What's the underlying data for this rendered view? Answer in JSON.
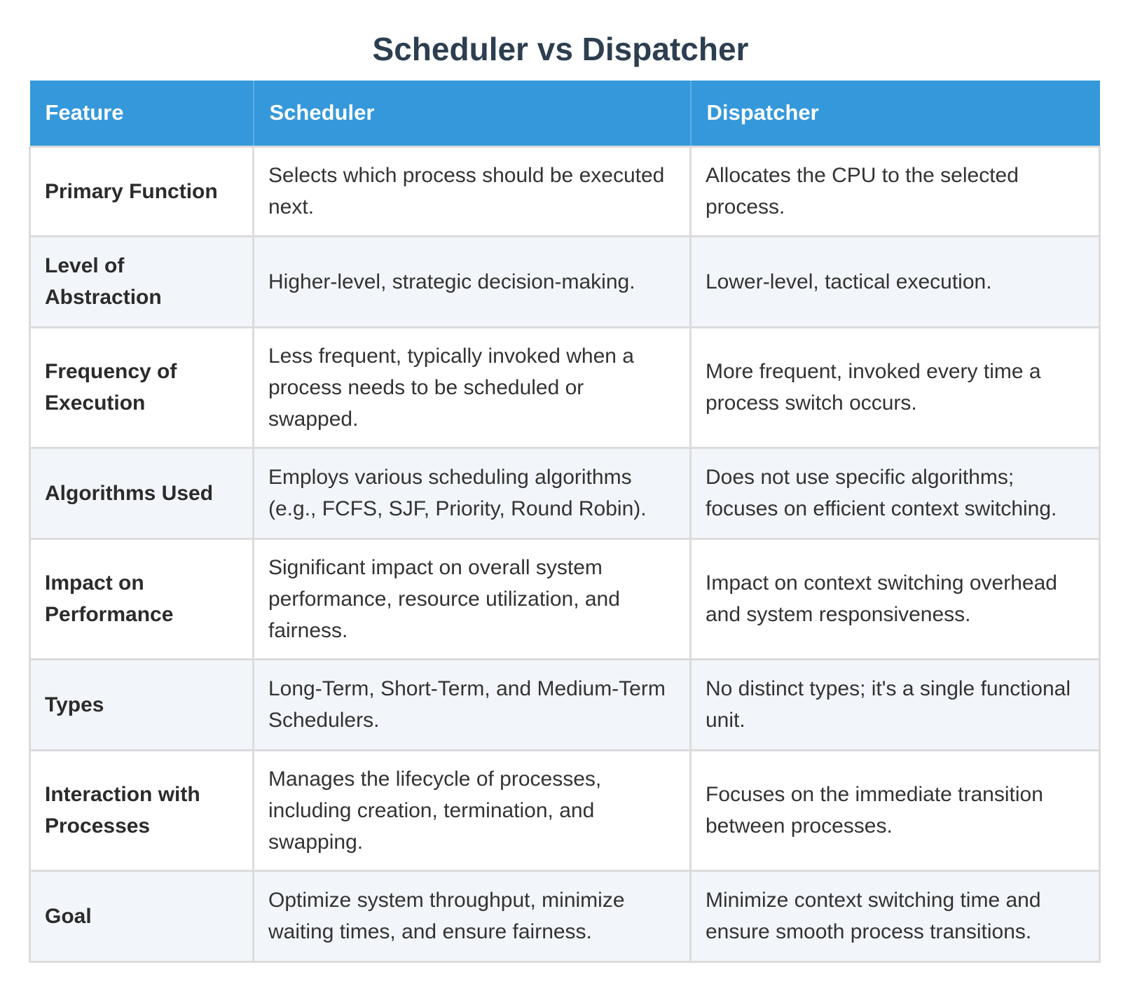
{
  "title": "Scheduler vs Dispatcher",
  "table": {
    "headers": [
      "Feature",
      "Scheduler",
      "Dispatcher"
    ],
    "rows": [
      {
        "feature": "Primary Function",
        "scheduler": "Selects which process should be executed next.",
        "dispatcher": "Allocates the CPU to the selected process."
      },
      {
        "feature": "Level of Abstraction",
        "scheduler": "Higher-level, strategic decision-making.",
        "dispatcher": "Lower-level, tactical execution."
      },
      {
        "feature": "Frequency of Execution",
        "scheduler": "Less frequent, typically invoked when a process needs to be scheduled or swapped.",
        "dispatcher": "More frequent, invoked every time a process switch occurs."
      },
      {
        "feature": "Algorithms Used",
        "scheduler": "Employs various scheduling algorithms (e.g., FCFS, SJF, Priority, Round Robin).",
        "dispatcher": "Does not use specific algorithms; focuses on efficient context switching."
      },
      {
        "feature": "Impact on Performance",
        "scheduler": "Significant impact on overall system performance, resource utilization, and fairness.",
        "dispatcher": "Impact on context switching overhead and system responsiveness."
      },
      {
        "feature": "Types",
        "scheduler": "Long-Term, Short-Term, and Medium-Term Schedulers.",
        "dispatcher": "No distinct types; it's a single functional unit."
      },
      {
        "feature": "Interaction with Processes",
        "scheduler": "Manages the lifecycle of processes, including creation, termination, and swapping.",
        "dispatcher": "Focuses on the immediate transition between processes."
      },
      {
        "feature": "Goal",
        "scheduler": "Optimize system throughput, minimize waiting times, and ensure fairness.",
        "dispatcher": "Minimize context switching time and ensure smooth process transitions."
      }
    ]
  },
  "colors": {
    "title": "#2c3e50",
    "header_bg": "#3498db",
    "header_text": "#ffffff",
    "alt_row_bg": "#f2f5f9",
    "border": "#dcdcdc"
  }
}
